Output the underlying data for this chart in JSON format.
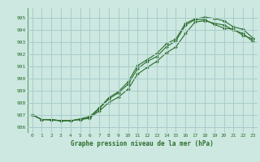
{
  "xlabel": "Graphe pression niveau de la mer (hPa)",
  "bg_color": "#cce8e0",
  "grid_color": "#aacccc",
  "line_color": "#2d6e2d",
  "xlim": [
    -0.5,
    23.5
  ],
  "ylim": [
    985.5,
    995.8
  ],
  "yticks": [
    986,
    987,
    988,
    989,
    990,
    991,
    992,
    993,
    994,
    995
  ],
  "xticks": [
    0,
    1,
    2,
    3,
    4,
    5,
    6,
    7,
    8,
    9,
    10,
    11,
    12,
    13,
    14,
    15,
    16,
    17,
    18,
    19,
    20,
    21,
    22,
    23
  ],
  "series1": [
    987.0,
    986.6,
    986.6,
    986.5,
    986.5,
    986.6,
    986.7,
    987.5,
    988.3,
    988.8,
    989.5,
    990.8,
    991.4,
    991.8,
    992.6,
    993.1,
    994.4,
    994.85,
    994.85,
    994.45,
    994.15,
    994.05,
    993.55,
    993.25
  ],
  "series2": [
    987.0,
    986.6,
    986.6,
    986.5,
    986.5,
    986.65,
    986.85,
    987.55,
    988.4,
    988.9,
    989.7,
    991.05,
    991.55,
    992.05,
    992.85,
    993.25,
    994.55,
    994.9,
    995.05,
    994.95,
    994.75,
    994.25,
    994.05,
    993.35
  ],
  "series3": [
    987.0,
    986.6,
    986.55,
    986.5,
    986.5,
    986.6,
    986.75,
    987.3,
    988.0,
    988.45,
    989.1,
    990.35,
    990.9,
    991.4,
    992.1,
    992.6,
    993.7,
    994.65,
    994.75,
    994.55,
    994.4,
    994.0,
    993.7,
    993.05
  ]
}
